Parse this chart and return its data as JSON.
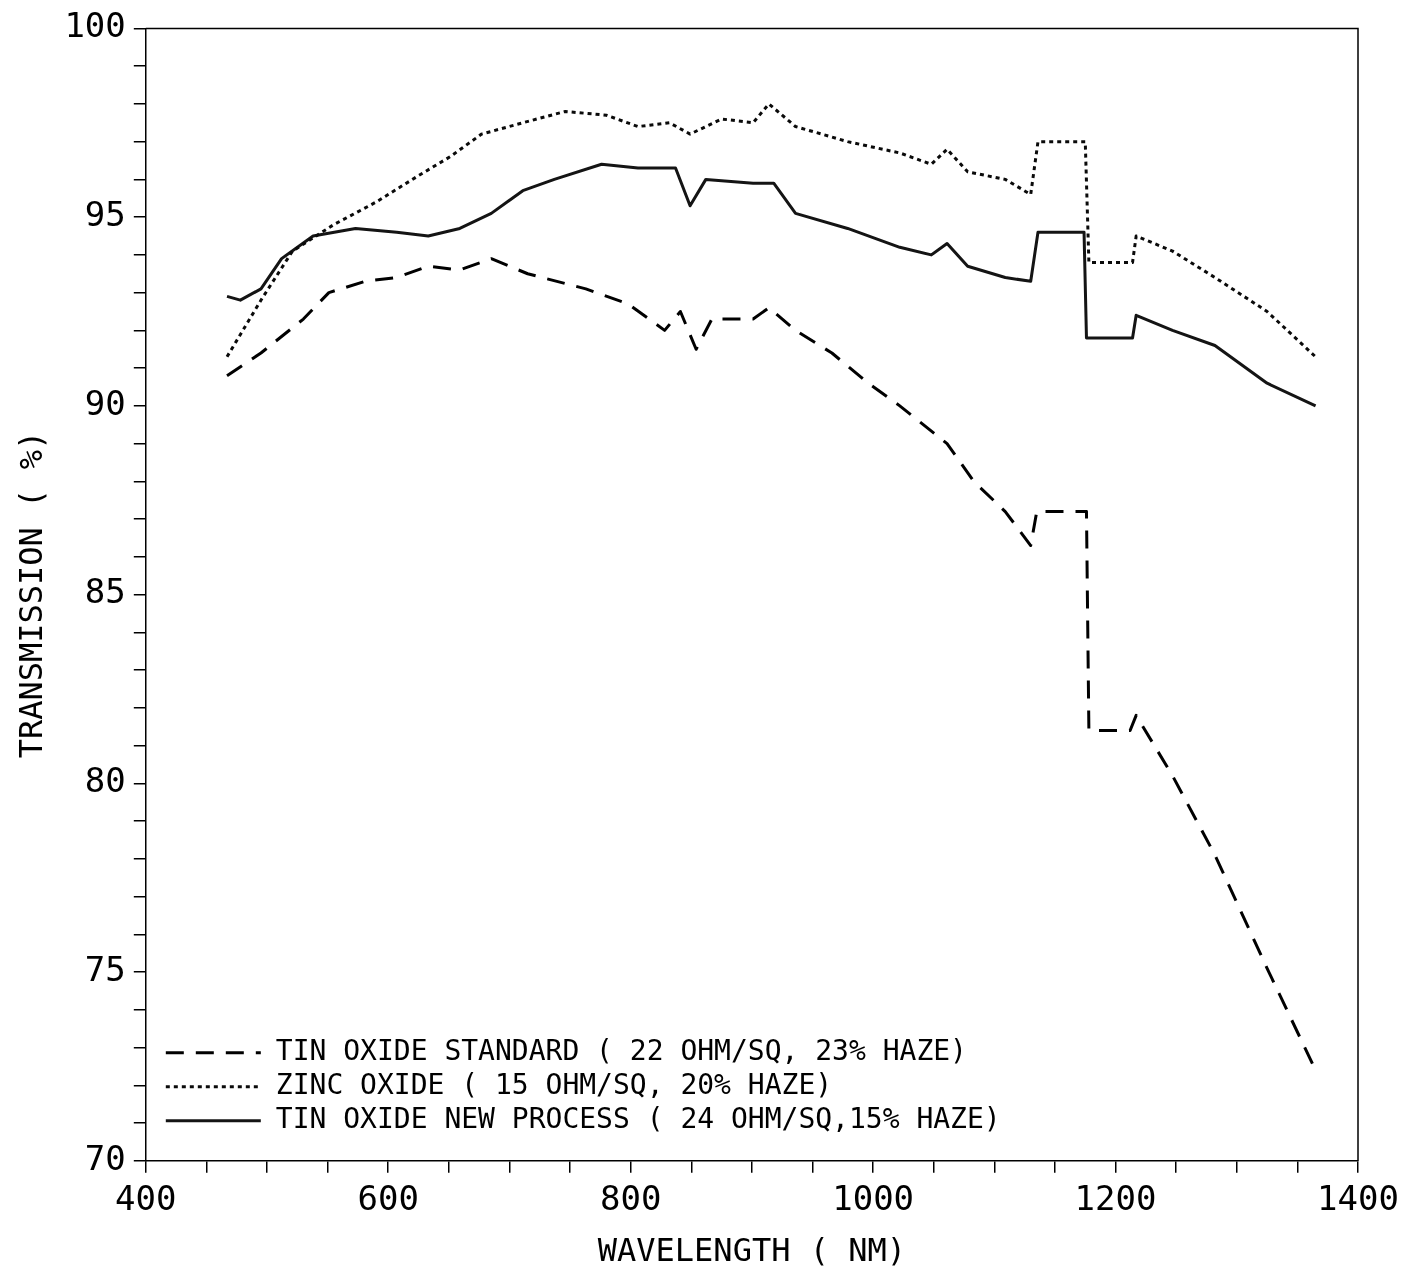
{
  "chart_data": {
    "type": "line",
    "xlabel": "WAVELENGTH ( NM)",
    "ylabel": "TRANSMISSION ( %)",
    "xlim": [
      400,
      1400
    ],
    "ylim": [
      70,
      100
    ],
    "xticks": [
      400,
      {
        "value": 450,
        "label": null
      },
      600,
      {
        "value": 500,
        "label": null
      },
      {
        "value": 550,
        "label": null
      },
      {
        "value": 650,
        "label": null
      },
      {
        "value": 700,
        "label": null
      },
      {
        "value": 750,
        "label": null
      },
      800,
      {
        "value": 850,
        "label": null
      },
      {
        "value": 900,
        "label": null
      },
      {
        "value": 950,
        "label": null
      },
      1000,
      {
        "value": 1050,
        "label": null
      },
      {
        "value": 1100,
        "label": null
      },
      {
        "value": 1150,
        "label": null
      },
      1200,
      {
        "value": 1250,
        "label": null
      },
      {
        "value": 1300,
        "label": null
      },
      {
        "value": 1350,
        "label": null
      },
      1400
    ],
    "yticks": [
      70,
      {
        "value": 71,
        "label": null
      },
      {
        "value": 72,
        "label": null
      },
      {
        "value": 73,
        "label": null
      },
      {
        "value": 74,
        "label": null
      },
      75,
      {
        "value": 76,
        "label": null
      },
      {
        "value": 77,
        "label": null
      },
      {
        "value": 78,
        "label": null
      },
      {
        "value": 79,
        "label": null
      },
      80,
      {
        "value": 81,
        "label": null
      },
      {
        "value": 82,
        "label": null
      },
      {
        "value": 83,
        "label": null
      },
      {
        "value": 84,
        "label": null
      },
      85,
      {
        "value": 86,
        "label": null
      },
      {
        "value": 87,
        "label": null
      },
      {
        "value": 88,
        "label": null
      },
      {
        "value": 89,
        "label": null
      },
      90,
      {
        "value": 91,
        "label": null
      },
      {
        "value": 92,
        "label": null
      },
      {
        "value": 93,
        "label": null
      },
      {
        "value": 94,
        "label": null
      },
      95,
      {
        "value": 96,
        "label": null
      },
      {
        "value": 97,
        "label": null
      },
      {
        "value": 98,
        "label": null
      },
      {
        "value": 99,
        "label": null
      },
      100
    ],
    "grid": false,
    "legend": "bottom left",
    "marker": "none",
    "series": [
      {
        "name": "TIN OXIDE STANDARD ( 22 OHM/SQ, 23% HAZE)",
        "color": "#000000",
        "line_style": "dashed",
        "x": [
          467,
          495,
          530,
          551,
          581,
          607,
          633,
          659,
          685,
          715,
          763,
          798,
          828,
          841,
          854,
          867,
          901,
          914,
          936,
          966,
          996,
          1022,
          1061,
          1083,
          1109,
          1130,
          1135,
          1176,
          1178,
          1212,
          1217,
          1247,
          1282,
          1325,
          1365
        ],
        "values": [
          90.8,
          91.4,
          92.3,
          93.0,
          93.3,
          93.4,
          93.7,
          93.6,
          93.9,
          93.5,
          93.1,
          92.7,
          92.0,
          92.5,
          91.5,
          92.3,
          92.3,
          92.6,
          92.0,
          91.4,
          90.6,
          90.0,
          89.0,
          88.0,
          87.2,
          86.3,
          87.2,
          87.2,
          81.4,
          81.4,
          81.8,
          80.2,
          78.1,
          75.1,
          72.4
        ]
      },
      {
        "name": "ZINC OXIDE ( 15 OHM/SQ, 20% HAZE)",
        "color": "#0a0a0a",
        "line_style": "dotted",
        "x": [
          467,
          495,
          521,
          555,
          590,
          625,
          651,
          677,
          711,
          746,
          780,
          806,
          832,
          849,
          875,
          901,
          914,
          936,
          979,
          1022,
          1048,
          1061,
          1078,
          1109,
          1130,
          1136,
          1175,
          1178,
          1214,
          1217,
          1247,
          1282,
          1325,
          1365
        ],
        "values": [
          91.3,
          92.8,
          94.1,
          94.8,
          95.4,
          96.1,
          96.6,
          97.2,
          97.5,
          97.8,
          97.7,
          97.4,
          97.5,
          97.2,
          97.6,
          97.5,
          98.0,
          97.4,
          97.0,
          96.7,
          96.4,
          96.8,
          96.2,
          96.0,
          95.6,
          97.0,
          97.0,
          93.8,
          93.8,
          94.5,
          94.1,
          93.4,
          92.5,
          91.3
        ]
      },
      {
        "name": "TIN OXIDE NEW PROCESS ( 24 OHM/SQ,15% HAZE)",
        "color": "#141414",
        "line_style": "solid",
        "x": [
          467,
          478,
          495,
          512,
          538,
          573,
          607,
          633,
          659,
          685,
          711,
          737,
          776,
          806,
          837,
          849,
          862,
          901,
          918,
          936,
          979,
          1022,
          1048,
          1061,
          1078,
          1109,
          1130,
          1136,
          1174,
          1176,
          1214,
          1217,
          1247,
          1282,
          1325,
          1365
        ],
        "values": [
          92.9,
          92.8,
          93.1,
          93.9,
          94.5,
          94.7,
          94.6,
          94.5,
          94.7,
          95.1,
          95.7,
          96.0,
          96.4,
          96.3,
          96.3,
          95.3,
          96.0,
          95.9,
          95.9,
          95.1,
          94.7,
          94.2,
          94.0,
          94.3,
          93.7,
          93.4,
          93.3,
          94.6,
          94.6,
          91.8,
          91.8,
          92.4,
          92.0,
          91.6,
          90.6,
          90.0
        ]
      }
    ]
  }
}
